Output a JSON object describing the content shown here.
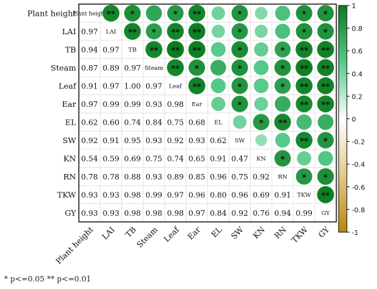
{
  "chart_data": {
    "type": "heatmap",
    "variables": [
      "Plant height",
      "LAI",
      "TB",
      "Steam",
      "Leaf",
      "Ear",
      "EL",
      "SW",
      "KN",
      "RN",
      "TKW",
      "GY"
    ],
    "lower_values": [
      [],
      [
        0.97
      ],
      [
        0.94,
        0.97
      ],
      [
        0.87,
        0.89,
        0.97
      ],
      [
        0.91,
        0.97,
        1.0,
        0.97
      ],
      [
        0.97,
        0.99,
        0.99,
        0.93,
        0.98
      ],
      [
        0.62,
        0.6,
        0.74,
        0.84,
        0.75,
        0.68
      ],
      [
        0.92,
        0.91,
        0.95,
        0.93,
        0.92,
        0.93,
        0.62
      ],
      [
        0.54,
        0.59,
        0.69,
        0.75,
        0.74,
        0.65,
        0.91,
        0.47
      ],
      [
        0.78,
        0.78,
        0.88,
        0.93,
        0.89,
        0.85,
        0.96,
        0.75,
        0.92
      ],
      [
        0.93,
        0.93,
        0.98,
        0.99,
        0.97,
        0.96,
        0.8,
        0.96,
        0.69,
        0.91
      ],
      [
        0.93,
        0.93,
        0.98,
        0.98,
        0.98,
        0.97,
        0.84,
        0.92,
        0.76,
        0.94,
        0.99
      ]
    ],
    "upper_significance": [
      [
        "",
        "**",
        "*",
        "",
        "*",
        "**",
        "",
        "*",
        "",
        "",
        "*",
        "*"
      ],
      [
        "",
        "",
        "**",
        "*",
        "**",
        "**",
        "",
        "*",
        "",
        "",
        "*",
        "*"
      ],
      [
        "",
        "",
        "",
        "**",
        "**",
        "**",
        "",
        "*",
        "",
        "*",
        "**",
        "**"
      ],
      [
        "",
        "",
        "",
        "",
        "**",
        "*",
        "",
        "*",
        "",
        "*",
        "**",
        "**"
      ],
      [
        "",
        "",
        "",
        "",
        "",
        "**",
        "",
        "*",
        "",
        "*",
        "**",
        "**"
      ],
      [
        "",
        "",
        "",
        "",
        "",
        "",
        "",
        "*",
        "",
        "",
        "**",
        "**"
      ],
      [
        "",
        "",
        "",
        "",
        "",
        "",
        "",
        "",
        "*",
        "**",
        "",
        ""
      ],
      [
        "",
        "",
        "",
        "",
        "",
        "",
        "",
        "",
        "",
        "",
        "**",
        "*"
      ],
      [
        "",
        "",
        "",
        "",
        "",
        "",
        "",
        "",
        "",
        "*",
        "",
        ""
      ],
      [
        "",
        "",
        "",
        "",
        "",
        "",
        "",
        "",
        "",
        "",
        "*",
        "*"
      ],
      [
        "",
        "",
        "",
        "",
        "",
        "",
        "",
        "",
        "",
        "",
        "",
        "**"
      ],
      [
        "",
        "",
        "",
        "",
        "",
        "",
        "",
        "",
        "",
        "",
        "",
        ""
      ]
    ],
    "colorbar": {
      "range": [
        -1,
        1
      ],
      "ticks": [
        "1",
        "0.8",
        "0.6",
        "0.4",
        "0.2",
        "0",
        "-0.2",
        "-0.4",
        "-0.6",
        "-0.8",
        "-1"
      ],
      "positive_color": "#0a7d1e",
      "negative_color": "#b8860b"
    }
  },
  "footnote": "* p<=0.05  ** p<=0.01"
}
